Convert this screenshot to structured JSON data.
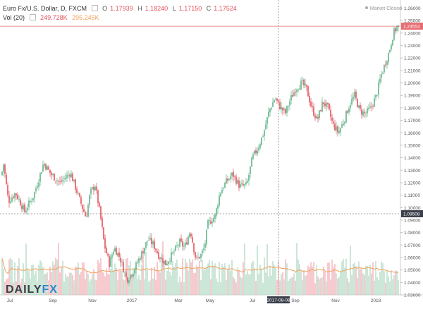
{
  "header": {
    "symbol_label": "Euro Fx/U.S. Dollar, D, FXCM",
    "open_key": "O",
    "open_val": "1.17939",
    "high_key": "H",
    "high_val": "1.18240",
    "low_key": "L",
    "low_val": "1.17150",
    "close_key": "C",
    "close_val": "1.17524",
    "vol_label": "Vol (20)",
    "vol_val": "249.728K",
    "vol_ma_val": "295.245K",
    "status": "Market Closed"
  },
  "logo": {
    "part1": "DAILY",
    "part2": "FX"
  },
  "colors": {
    "up": "#5fb388",
    "down": "#e2525c",
    "vol_up": "#b6dcc8",
    "vol_down": "#f3b3b8",
    "ma": "#f0a35c",
    "crosshair": "#e76d72"
  },
  "chart_data": {
    "type": "candlestick",
    "ylim": [
      1.03,
      1.262
    ],
    "yticks": [
      "1.26000",
      "1.25000",
      "1.24000",
      "1.23000",
      "1.22000",
      "1.21000",
      "1.20000",
      "1.19000",
      "1.18000",
      "1.17000",
      "1.16000",
      "1.15000",
      "1.14000",
      "1.13000",
      "1.12000",
      "1.11000",
      "1.10000",
      "1.09000",
      "1.08000",
      "1.07000",
      "1.06000",
      "1.05000",
      "1.04000",
      "1.03000"
    ],
    "xticks": [
      "Jul",
      "Sep",
      "Nov",
      "2017",
      "Mar",
      "May",
      "Jul",
      "2017-08-08",
      "Sep",
      "Nov",
      "2018"
    ],
    "price_markers": [
      {
        "label": "1.24553",
        "value": 1.24553
      },
      {
        "label": "1.09508",
        "value": 1.09508
      }
    ],
    "crosshair_x": "2017-08-08",
    "path": [
      [
        0,
        1.12
      ],
      [
        5,
        1.135
      ],
      [
        12,
        1.105
      ],
      [
        22,
        1.112
      ],
      [
        35,
        1.097
      ],
      [
        48,
        1.11
      ],
      [
        62,
        1.136
      ],
      [
        72,
        1.127
      ],
      [
        85,
        1.12
      ],
      [
        100,
        1.128
      ],
      [
        112,
        1.108
      ],
      [
        122,
        1.092
      ],
      [
        128,
        1.112
      ],
      [
        135,
        1.118
      ],
      [
        142,
        1.095
      ],
      [
        148,
        1.07
      ],
      [
        155,
        1.055
      ],
      [
        162,
        1.068
      ],
      [
        170,
        1.06
      ],
      [
        180,
        1.042
      ],
      [
        190,
        1.05
      ],
      [
        200,
        1.062
      ],
      [
        210,
        1.075
      ],
      [
        218,
        1.07
      ],
      [
        225,
        1.062
      ],
      [
        235,
        1.055
      ],
      [
        245,
        1.063
      ],
      [
        255,
        1.072
      ],
      [
        262,
        1.068
      ],
      [
        270,
        1.082
      ],
      [
        278,
        1.058
      ],
      [
        285,
        1.062
      ],
      [
        290,
        1.068
      ],
      [
        295,
        1.087
      ],
      [
        305,
        1.093
      ],
      [
        312,
        1.112
      ],
      [
        320,
        1.12
      ],
      [
        330,
        1.127
      ],
      [
        340,
        1.117
      ],
      [
        350,
        1.118
      ],
      [
        358,
        1.14
      ],
      [
        366,
        1.148
      ],
      [
        374,
        1.16
      ],
      [
        382,
        1.178
      ],
      [
        390,
        1.188
      ],
      [
        398,
        1.18
      ],
      [
        405,
        1.176
      ],
      [
        412,
        1.187
      ],
      [
        420,
        1.196
      ],
      [
        428,
        1.2
      ],
      [
        435,
        1.195
      ],
      [
        442,
        1.18
      ],
      [
        450,
        1.17
      ],
      [
        458,
        1.185
      ],
      [
        465,
        1.18
      ],
      [
        472,
        1.167
      ],
      [
        480,
        1.16
      ],
      [
        488,
        1.17
      ],
      [
        496,
        1.183
      ],
      [
        503,
        1.19
      ],
      [
        510,
        1.178
      ],
      [
        518,
        1.175
      ],
      [
        526,
        1.18
      ],
      [
        534,
        1.19
      ],
      [
        540,
        1.205
      ],
      [
        546,
        1.215
      ],
      [
        552,
        1.225
      ],
      [
        558,
        1.24
      ],
      [
        563,
        1.245
      ]
    ],
    "volume_ma_note": "20-period volume moving average shown as orange line"
  }
}
